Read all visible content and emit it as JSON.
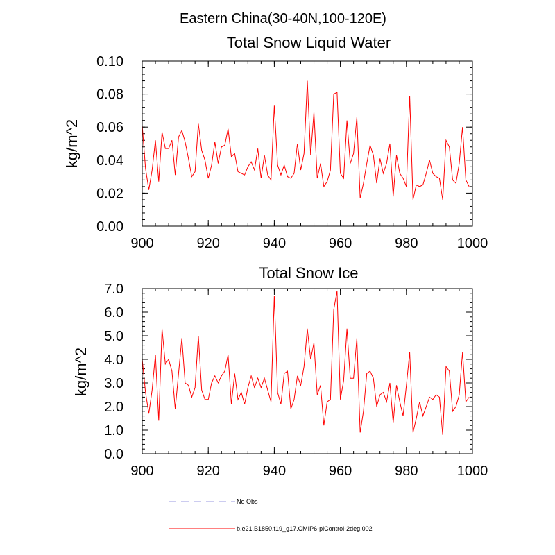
{
  "figure_title": "Eastern China(30-40N,100-120E)",
  "legend": [
    {
      "label": "No Obs",
      "color": "#9a9ae0",
      "dashed": true
    },
    {
      "label": "b.e21.B1850.f19_g17.CMIP6-piControl-2deg.002",
      "color": "#ff0000",
      "dashed": false
    }
  ],
  "colors": {
    "series": "#ff0000",
    "axis": "#000000"
  },
  "chart_data": [
    {
      "type": "line",
      "title": "Total Snow Liquid Water",
      "xlabel": "",
      "ylabel": "kg/m^2",
      "xlim": [
        900,
        1000
      ],
      "ylim": [
        0.0,
        0.1
      ],
      "xticks": [
        900,
        920,
        940,
        960,
        980,
        1000
      ],
      "xtick_labels": [
        "900",
        "920",
        "940",
        "960",
        "980",
        "1000"
      ],
      "yticks": [
        0.0,
        0.02,
        0.04,
        0.06,
        0.08,
        0.1
      ],
      "ytick_labels": [
        "0.00",
        "0.02",
        "0.04",
        "0.06",
        "0.08",
        "0.10"
      ],
      "x_start": 900,
      "series": [
        {
          "name": "b.e21.B1850.f19_g17.CMIP6-piControl-2deg.002",
          "values": [
            0.061,
            0.035,
            0.022,
            0.034,
            0.052,
            0.027,
            0.057,
            0.047,
            0.047,
            0.052,
            0.031,
            0.054,
            0.058,
            0.051,
            0.041,
            0.03,
            0.033,
            0.062,
            0.046,
            0.04,
            0.029,
            0.037,
            0.051,
            0.038,
            0.048,
            0.049,
            0.059,
            0.042,
            0.044,
            0.033,
            0.032,
            0.031,
            0.036,
            0.039,
            0.034,
            0.047,
            0.029,
            0.043,
            0.031,
            0.028,
            0.073,
            0.037,
            0.031,
            0.037,
            0.03,
            0.029,
            0.032,
            0.05,
            0.034,
            0.044,
            0.088,
            0.043,
            0.069,
            0.029,
            0.038,
            0.024,
            0.027,
            0.034,
            0.08,
            0.081,
            0.032,
            0.029,
            0.064,
            0.038,
            0.044,
            0.066,
            0.017,
            0.026,
            0.038,
            0.049,
            0.043,
            0.026,
            0.041,
            0.032,
            0.038,
            0.05,
            0.018,
            0.043,
            0.032,
            0.029,
            0.024,
            0.079,
            0.016,
            0.025,
            0.024,
            0.025,
            0.032,
            0.04,
            0.032,
            0.03,
            0.029,
            0.016,
            0.052,
            0.048,
            0.028,
            0.026,
            0.038,
            0.06,
            0.028,
            0.024
          ]
        }
      ]
    },
    {
      "type": "line",
      "title": "Total Snow Ice",
      "xlabel": "",
      "ylabel": "kg/m^2",
      "xlim": [
        900,
        1000
      ],
      "ylim": [
        0.0,
        7.0
      ],
      "xticks": [
        900,
        920,
        940,
        960,
        980,
        1000
      ],
      "xtick_labels": [
        "900",
        "920",
        "940",
        "960",
        "980",
        "1000"
      ],
      "yticks": [
        0.0,
        1.0,
        2.0,
        3.0,
        4.0,
        5.0,
        6.0,
        7.0
      ],
      "ytick_labels": [
        "0.0",
        "1.0",
        "2.0",
        "3.0",
        "4.0",
        "5.0",
        "6.0",
        "7.0"
      ],
      "x_start": 900,
      "series": [
        {
          "name": "b.e21.B1850.f19_g17.CMIP6-piControl-2deg.002",
          "values": [
            4.0,
            2.6,
            1.7,
            2.7,
            4.2,
            1.4,
            5.3,
            3.8,
            4.0,
            3.5,
            1.9,
            3.4,
            4.9,
            3.0,
            2.9,
            2.4,
            2.8,
            5.0,
            2.7,
            2.3,
            2.3,
            3.0,
            3.3,
            3.0,
            3.3,
            3.5,
            4.2,
            2.1,
            3.4,
            2.3,
            2.6,
            2.1,
            2.8,
            3.3,
            2.8,
            3.2,
            2.8,
            3.2,
            2.7,
            2.2,
            6.7,
            2.6,
            2.1,
            3.4,
            3.5,
            1.9,
            2.3,
            3.3,
            2.9,
            3.7,
            5.3,
            4.0,
            4.7,
            2.5,
            2.9,
            1.2,
            2.2,
            2.3,
            6.1,
            6.9,
            2.3,
            3.1,
            5.3,
            3.2,
            3.2,
            4.9,
            0.9,
            1.8,
            3.4,
            3.5,
            3.2,
            2.0,
            2.5,
            2.6,
            2.2,
            3.0,
            1.3,
            2.9,
            2.2,
            1.6,
            2.9,
            4.3,
            0.9,
            1.5,
            2.2,
            1.6,
            2.0,
            2.4,
            2.3,
            2.5,
            2.4,
            0.8,
            3.7,
            3.5,
            1.8,
            2.0,
            2.5,
            4.3,
            2.2,
            2.4
          ]
        }
      ]
    }
  ]
}
